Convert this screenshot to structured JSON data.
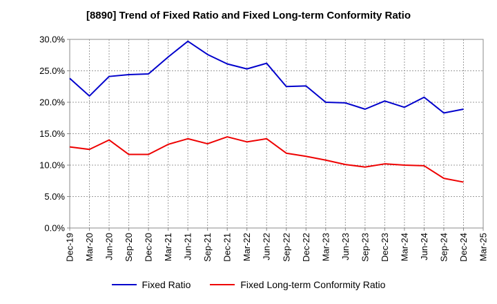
{
  "chart_data": {
    "type": "line",
    "title": "[8890]  Trend of Fixed Ratio and Fixed Long-term Conformity Ratio",
    "xlabel": "",
    "ylabel": "",
    "x_ticks": [
      "Dec-19",
      "Mar-20",
      "Jun-20",
      "Sep-20",
      "Dec-20",
      "Mar-21",
      "Jun-21",
      "Sep-21",
      "Dec-21",
      "Mar-22",
      "Jun-22",
      "Sep-22",
      "Dec-22",
      "Mar-23",
      "Jun-23",
      "Sep-23",
      "Dec-23",
      "Mar-24",
      "Jun-24",
      "Sep-24",
      "Dec-24",
      "Mar-25"
    ],
    "x": [
      "Dec-19",
      "Mar-20",
      "Jun-20",
      "Sep-20",
      "Dec-20",
      "Mar-21",
      "Jun-21",
      "Sep-21",
      "Dec-21",
      "Mar-22",
      "Jun-22",
      "Sep-22",
      "Dec-22",
      "Mar-23",
      "Jun-23",
      "Sep-23",
      "Dec-23",
      "Mar-24",
      "Jun-24",
      "Sep-24",
      "Dec-24"
    ],
    "ylim": [
      0,
      30
    ],
    "y_ticks": [
      0,
      5,
      10,
      15,
      20,
      25,
      30
    ],
    "y_tick_labels": [
      "0.0%",
      "5.0%",
      "10.0%",
      "15.0%",
      "20.0%",
      "25.0%",
      "30.0%"
    ],
    "grid": true,
    "legend_position": "bottom",
    "series": [
      {
        "name": "Fixed Ratio",
        "color": "#0000cc",
        "values": [
          23.8,
          21.0,
          24.1,
          24.4,
          24.5,
          27.2,
          29.7,
          27.6,
          26.1,
          25.3,
          26.2,
          22.5,
          22.6,
          20.0,
          19.9,
          18.9,
          20.2,
          19.2,
          20.8,
          18.3,
          18.9
        ]
      },
      {
        "name": "Fixed Long-term Conformity Ratio",
        "color": "#ee0000",
        "values": [
          12.9,
          12.5,
          14.0,
          11.7,
          11.7,
          13.3,
          14.2,
          13.4,
          14.5,
          13.7,
          14.2,
          11.9,
          11.4,
          10.8,
          10.1,
          9.7,
          10.2,
          10.0,
          9.9,
          7.9,
          7.3
        ]
      }
    ]
  }
}
